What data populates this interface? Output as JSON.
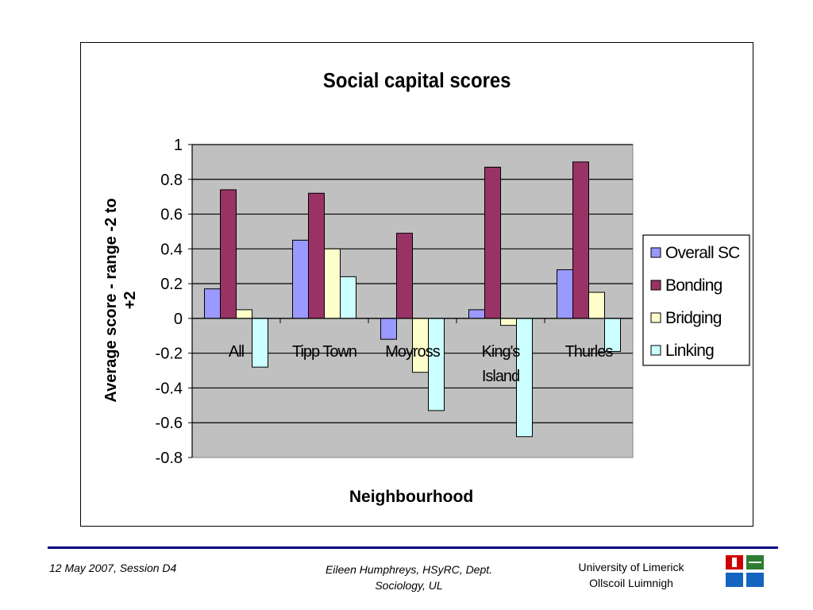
{
  "chart_data": {
    "type": "bar",
    "title": "Social capital scores",
    "xlabel": "Neighbourhood",
    "ylabel": "Average score - range -2 to +2",
    "ylabel_lines": [
      "Average score - range -2 to",
      "+2"
    ],
    "categories": [
      "All",
      "Tipp Town",
      "Moyross",
      "King's Island",
      "Thurles"
    ],
    "category_lines": [
      [
        "All"
      ],
      [
        "Tipp Town"
      ],
      [
        "Moyross"
      ],
      [
        "King's",
        "Island"
      ],
      [
        "Thurles"
      ]
    ],
    "series": [
      {
        "name": "Overall SC",
        "color": "#9999ff",
        "values": [
          0.17,
          0.45,
          -0.12,
          0.05,
          0.28
        ]
      },
      {
        "name": "Bonding",
        "color": "#993366",
        "values": [
          0.74,
          0.72,
          0.49,
          0.87,
          0.9
        ]
      },
      {
        "name": "Bridging",
        "color": "#ffffcc",
        "values": [
          0.05,
          0.4,
          -0.31,
          -0.04,
          0.15
        ]
      },
      {
        "name": "Linking",
        "color": "#ccffff",
        "values": [
          -0.28,
          0.24,
          -0.53,
          -0.68,
          -0.19
        ]
      }
    ],
    "ylim": [
      -0.8,
      1
    ],
    "yticks": [
      "1",
      "0.8",
      "0.6",
      "0.4",
      "0.2",
      "0",
      "-0.2",
      "-0.4",
      "-0.6",
      "-0.8"
    ],
    "ytick_values": [
      1,
      0.8,
      0.6,
      0.4,
      0.2,
      0,
      -0.2,
      -0.4,
      -0.6,
      -0.8
    ],
    "grid": true,
    "plot_background": "#c0c0c0",
    "legend_position": "right"
  },
  "footer": {
    "date_session": "12 May 2007, Session D4",
    "author_line1": "Eileen Humphreys, HSyRC, Dept.",
    "author_line2": "Sociology, UL",
    "university_line1": "University of Limerick",
    "university_line2": "Ollscoil Luimnigh"
  },
  "logo": {
    "colors": [
      "#cc0000",
      "#2e7d32",
      "#1565c0"
    ]
  }
}
